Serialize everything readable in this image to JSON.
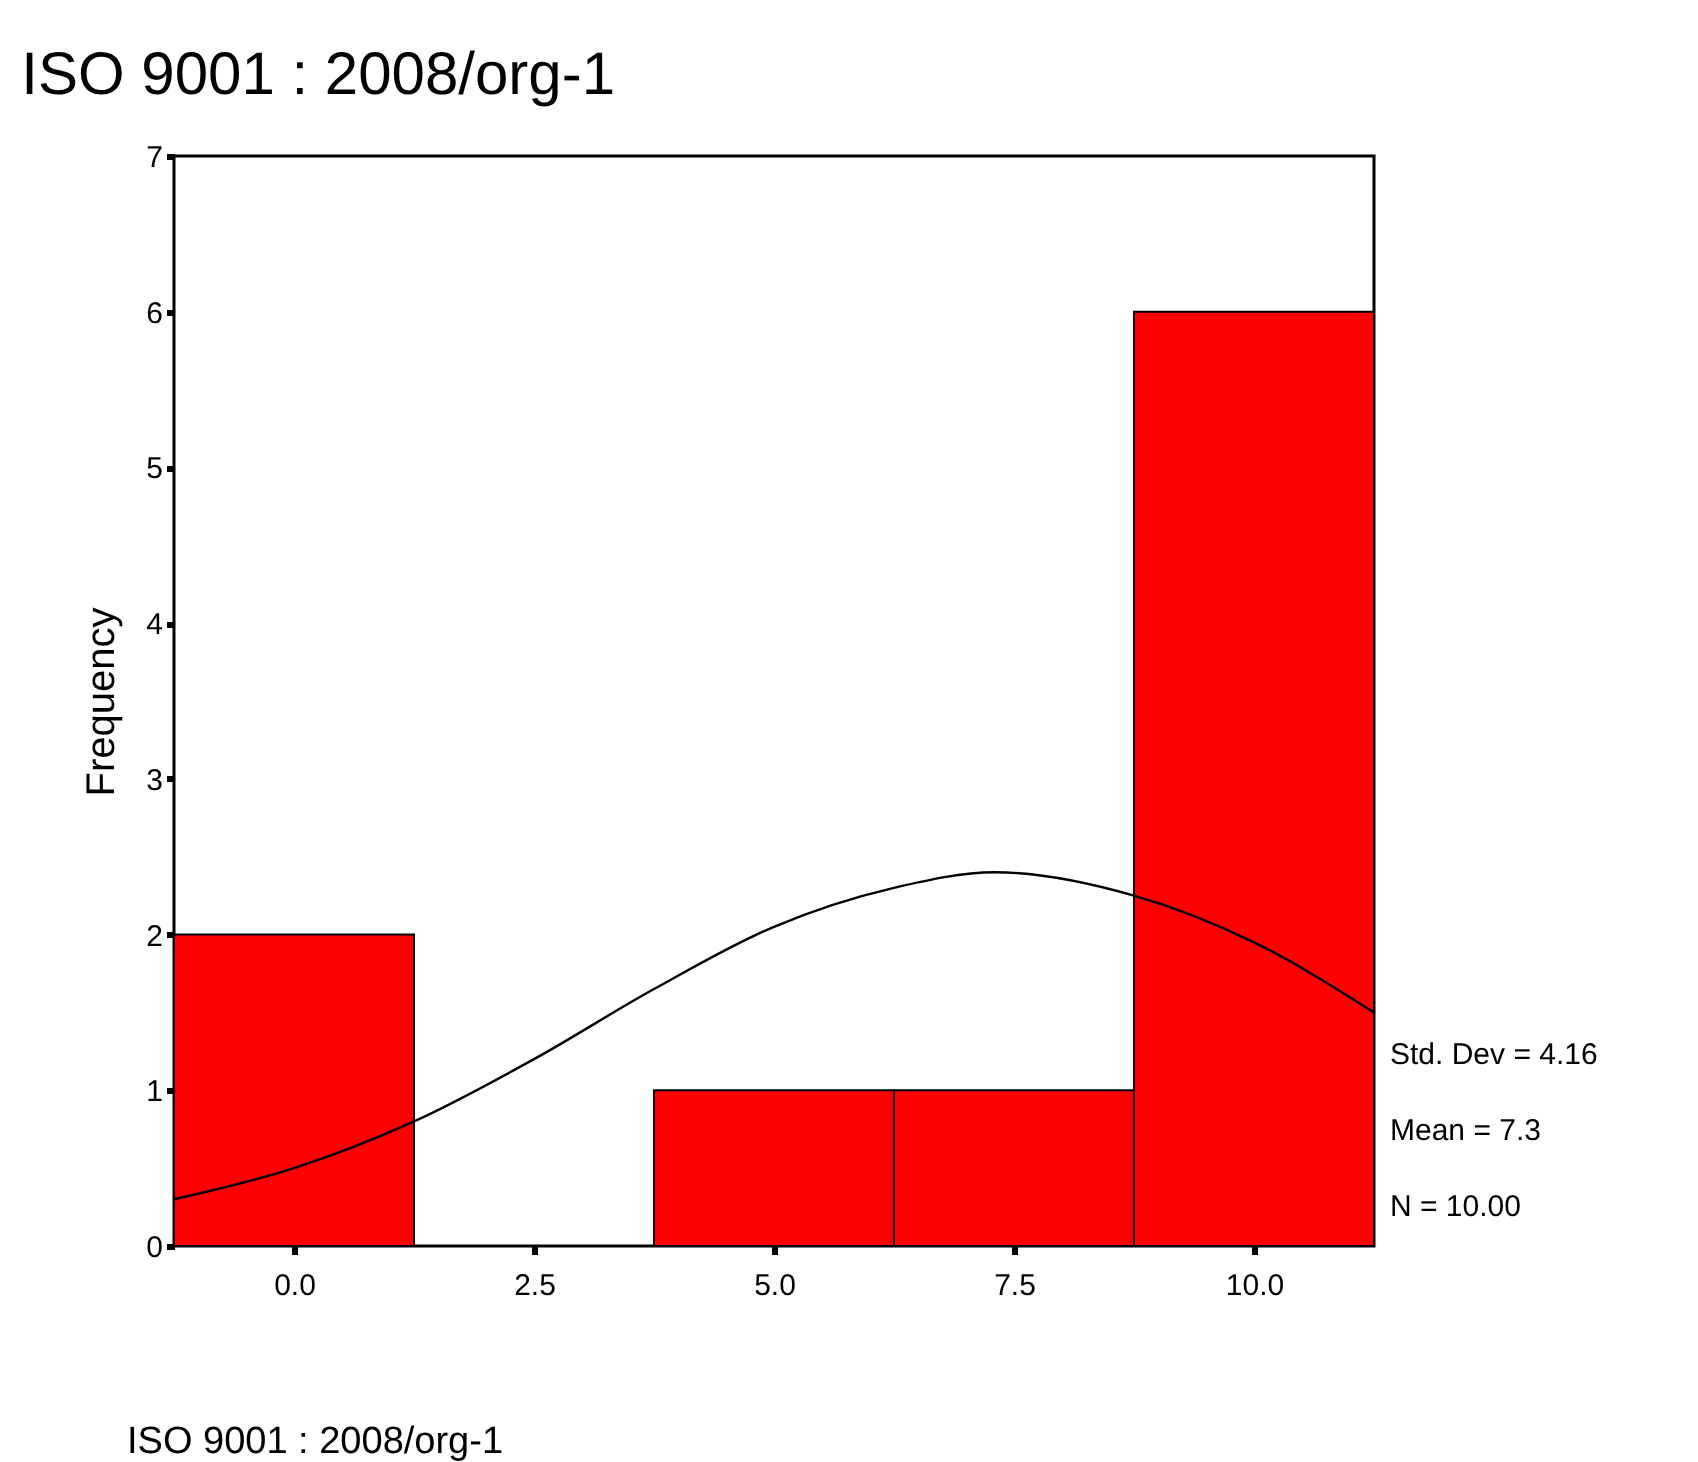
{
  "chart_data": {
    "type": "histogram",
    "title": "ISO 9001 : 2008/org-1",
    "xlabel": "ISO 9001 : 2008/org-1",
    "ylabel": "Frequency",
    "bins": [
      -1.25,
      1.25,
      3.75,
      6.25,
      8.75,
      11.25
    ],
    "values": [
      2,
      0,
      1,
      1,
      6
    ],
    "color": "#ff0000",
    "series": [
      {
        "type": "line",
        "color": "#000000",
        "x": [
          -1.25,
          0,
          1.25,
          2.5,
          3.75,
          5,
          6.25,
          7.3,
          8.75,
          10,
          11.25
        ],
        "values": [
          0.3,
          0.5,
          0.8,
          1.2,
          1.65,
          2.05,
          2.3,
          2.4,
          2.25,
          1.95,
          1.5
        ]
      }
    ],
    "xlim": [
      -1.25,
      11.25
    ],
    "xticks": [
      {
        "value": 0,
        "label": "0.0"
      },
      {
        "value": 2.5,
        "label": "2.5"
      },
      {
        "value": 5,
        "label": "5.0"
      },
      {
        "value": 7.5,
        "label": "7.5"
      },
      {
        "value": 10,
        "label": "10.0"
      }
    ],
    "ylim": [
      0,
      7
    ],
    "yticks": [
      0,
      1,
      2,
      3,
      4,
      5,
      6,
      7
    ],
    "grid": false,
    "annotations": [
      "Std. Dev = 4.16",
      "Mean = 7.3",
      "N = 10.00"
    ]
  }
}
